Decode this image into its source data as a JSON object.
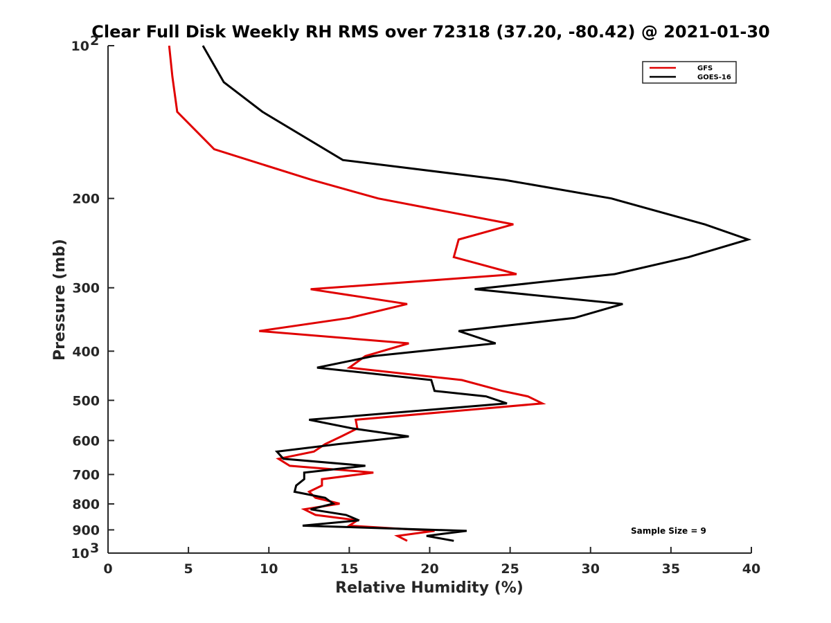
{
  "chart_data": {
    "type": "line",
    "title": "Clear Full Disk Weekly RH RMS over 72318 (37.20, -80.42) @ 2021-01-30",
    "xlabel": "Relative Humidity (%)",
    "ylabel": "Pressure (mb)",
    "xlim": [
      0,
      40
    ],
    "ylim": [
      100,
      1000
    ],
    "y_scale": "log",
    "y_reversed": true,
    "grid": false,
    "legend_position": "top-right",
    "x_ticks": [
      "0",
      "5",
      "10",
      "15",
      "20",
      "25",
      "30",
      "35",
      "40"
    ],
    "y_ticks": [
      {
        "value": 100,
        "base": "10",
        "exp": "2"
      },
      {
        "value": 200,
        "label": "200"
      },
      {
        "value": 300,
        "label": "300"
      },
      {
        "value": 400,
        "label": "400"
      },
      {
        "value": 500,
        "label": "500"
      },
      {
        "value": 600,
        "label": "600"
      },
      {
        "value": 700,
        "label": "700"
      },
      {
        "value": 800,
        "label": "800"
      },
      {
        "value": 900,
        "label": "900"
      },
      {
        "value": 1000,
        "base": "10",
        "exp": "3"
      }
    ],
    "annotation": "Sample Size = 9",
    "series": [
      {
        "name": "GFS",
        "color": "#e00000",
        "points": [
          [
            3.8,
            100
          ],
          [
            4.0,
            115
          ],
          [
            4.3,
            135
          ],
          [
            6.6,
            160
          ],
          [
            12.7,
            184
          ],
          [
            16.8,
            200
          ],
          [
            25.2,
            225
          ],
          [
            21.8,
            241
          ],
          [
            21.5,
            261
          ],
          [
            25.4,
            282
          ],
          [
            12.6,
            302
          ],
          [
            18.6,
            323
          ],
          [
            15.0,
            344
          ],
          [
            9.4,
            365
          ],
          [
            18.7,
            386
          ],
          [
            16.0,
            409
          ],
          [
            15.0,
            431
          ],
          [
            22.0,
            456
          ],
          [
            24.5,
            479
          ],
          [
            26.1,
            491
          ],
          [
            27.0,
            507
          ],
          [
            15.4,
            546
          ],
          [
            15.5,
            568
          ],
          [
            14.5,
            589
          ],
          [
            13.5,
            610
          ],
          [
            12.8,
            631
          ],
          [
            10.6,
            652
          ],
          [
            11.3,
            673
          ],
          [
            16.5,
            694
          ],
          [
            13.3,
            715
          ],
          [
            13.3,
            736
          ],
          [
            12.5,
            757
          ],
          [
            12.9,
            778
          ],
          [
            14.4,
            799
          ],
          [
            12.2,
            820
          ],
          [
            12.9,
            841
          ],
          [
            15.5,
            862
          ],
          [
            15.0,
            883
          ],
          [
            20.3,
            904
          ],
          [
            18.0,
            925
          ],
          [
            18.6,
            946
          ]
        ]
      },
      {
        "name": "GOES-16",
        "color": "#000000",
        "points": [
          [
            5.9,
            100
          ],
          [
            7.2,
            118
          ],
          [
            9.6,
            135
          ],
          [
            14.6,
            168
          ],
          [
            24.7,
            184
          ],
          [
            31.3,
            200
          ],
          [
            37.1,
            225
          ],
          [
            39.8,
            241
          ],
          [
            36.1,
            261
          ],
          [
            31.5,
            282
          ],
          [
            22.8,
            302
          ],
          [
            32.0,
            323
          ],
          [
            29.0,
            344
          ],
          [
            21.8,
            365
          ],
          [
            24.1,
            386
          ],
          [
            16.5,
            409
          ],
          [
            13.0,
            431
          ],
          [
            20.1,
            456
          ],
          [
            20.3,
            479
          ],
          [
            23.5,
            491
          ],
          [
            24.8,
            507
          ],
          [
            12.5,
            546
          ],
          [
            15.2,
            568
          ],
          [
            18.7,
            589
          ],
          [
            14.3,
            610
          ],
          [
            10.5,
            631
          ],
          [
            10.9,
            652
          ],
          [
            16.0,
            673
          ],
          [
            12.2,
            694
          ],
          [
            12.2,
            715
          ],
          [
            11.7,
            736
          ],
          [
            11.6,
            757
          ],
          [
            13.5,
            778
          ],
          [
            14.0,
            799
          ],
          [
            12.6,
            820
          ],
          [
            14.8,
            841
          ],
          [
            15.6,
            862
          ],
          [
            12.1,
            883
          ],
          [
            22.3,
            904
          ],
          [
            19.8,
            925
          ],
          [
            21.5,
            946
          ]
        ]
      }
    ]
  }
}
